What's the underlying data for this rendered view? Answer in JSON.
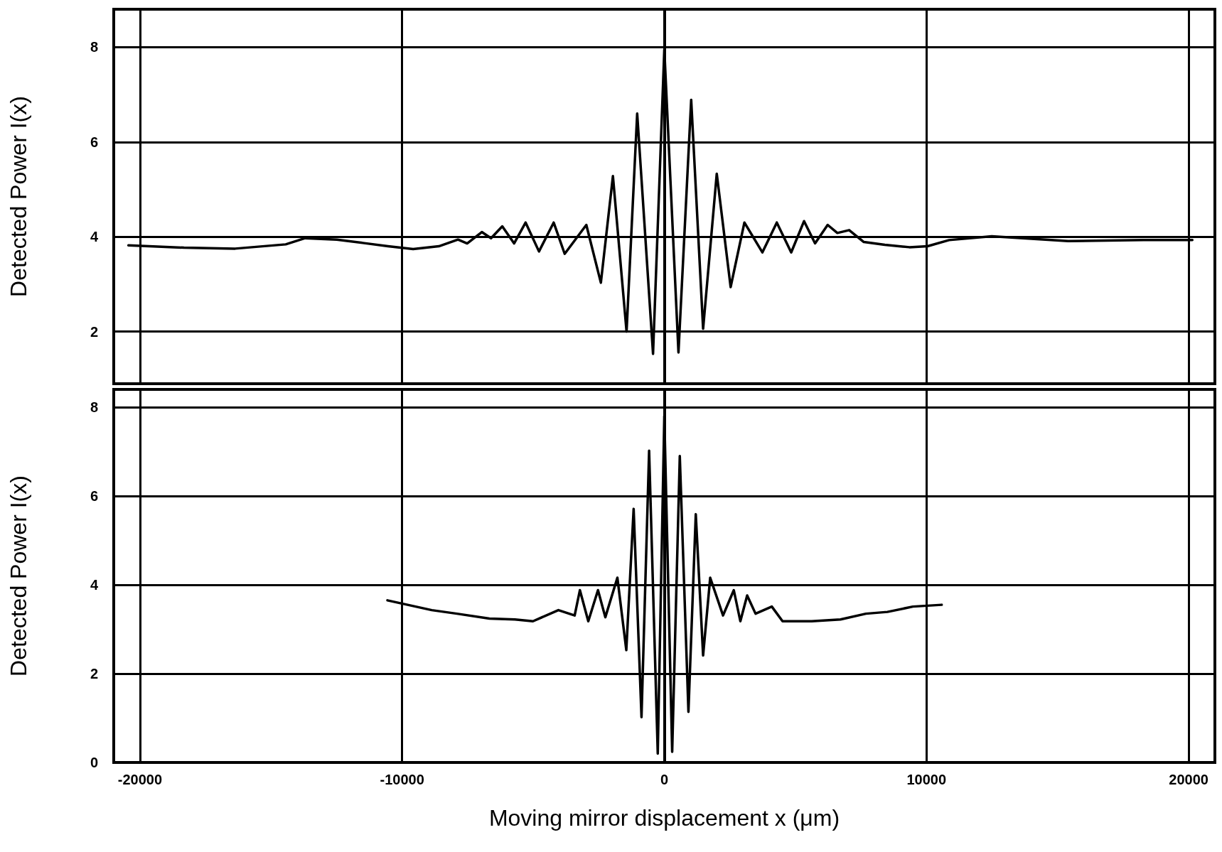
{
  "chart_data": [
    {
      "type": "line",
      "ylabel": "Detected Power I(x)",
      "xlim": [
        -21000,
        21000
      ],
      "xticks": [
        -20000,
        -10000,
        0,
        10000,
        20000
      ],
      "ylim": [
        0.9,
        8.8
      ],
      "yticks": [
        2,
        4,
        6,
        8
      ],
      "grid": true,
      "tick_labels": "y",
      "series": [
        {
          "color": "#000000",
          "x": [
            -20440,
            -18320,
            -16370,
            -14440,
            -13700,
            -12490,
            -11500,
            -10540,
            -9580,
            -8600,
            -7870,
            -7520,
            -6960,
            -6610,
            -6180,
            -5730,
            -5290,
            -4780,
            -4220,
            -3800,
            -2975,
            -2420,
            -1960,
            -1440,
            -1035,
            -430,
            0,
            540,
            1025,
            1480,
            2000,
            2530,
            3055,
            3740,
            4290,
            4840,
            5330,
            5750,
            6230,
            6600,
            7050,
            7610,
            8410,
            9350,
            10040,
            10860,
            12490,
            15400,
            18280,
            20140
          ],
          "values": [
            3.82,
            3.77,
            3.75,
            3.84,
            3.97,
            3.94,
            3.87,
            3.8,
            3.74,
            3.8,
            3.94,
            3.86,
            4.1,
            3.97,
            4.22,
            3.86,
            4.3,
            3.69,
            4.3,
            3.64,
            4.25,
            3.03,
            5.28,
            2.0,
            6.6,
            1.53,
            7.95,
            1.56,
            6.89,
            2.06,
            5.33,
            2.94,
            4.3,
            3.67,
            4.3,
            3.67,
            4.33,
            3.86,
            4.25,
            4.08,
            4.14,
            3.89,
            3.83,
            3.78,
            3.8,
            3.93,
            4.01,
            3.91,
            3.93,
            3.93
          ]
        }
      ]
    },
    {
      "type": "line",
      "xlabel": "Moving mirror displacement x (μm)",
      "ylabel": "Detected Power I(x)",
      "xlim": [
        -21000,
        21000
      ],
      "xticks": [
        -20000,
        -10000,
        0,
        10000,
        20000
      ],
      "ylim": [
        0,
        8.4
      ],
      "yticks": [
        0,
        2,
        4,
        6,
        8
      ],
      "grid": true,
      "series": [
        {
          "color": "#000000",
          "x": [
            -10560,
            -8870,
            -7910,
            -6670,
            -5700,
            -5010,
            -4040,
            -3420,
            -3220,
            -2900,
            -2530,
            -2250,
            -1790,
            -1450,
            -1170,
            -870,
            -580,
            -250,
            0,
            300,
            590,
            920,
            1200,
            1480,
            1750,
            2240,
            2650,
            2900,
            3160,
            3480,
            4100,
            4510,
            5620,
            6720,
            7690,
            8510,
            9480,
            10580
          ],
          "values": [
            3.65,
            3.43,
            3.35,
            3.24,
            3.22,
            3.18,
            3.43,
            3.31,
            3.88,
            3.18,
            3.88,
            3.27,
            4.16,
            2.53,
            5.71,
            1.02,
            7.02,
            0.2,
            7.8,
            0.24,
            6.9,
            1.14,
            5.59,
            2.41,
            4.16,
            3.31,
            3.88,
            3.18,
            3.76,
            3.35,
            3.51,
            3.18,
            3.18,
            3.22,
            3.35,
            3.39,
            3.51,
            3.55
          ]
        }
      ]
    }
  ]
}
